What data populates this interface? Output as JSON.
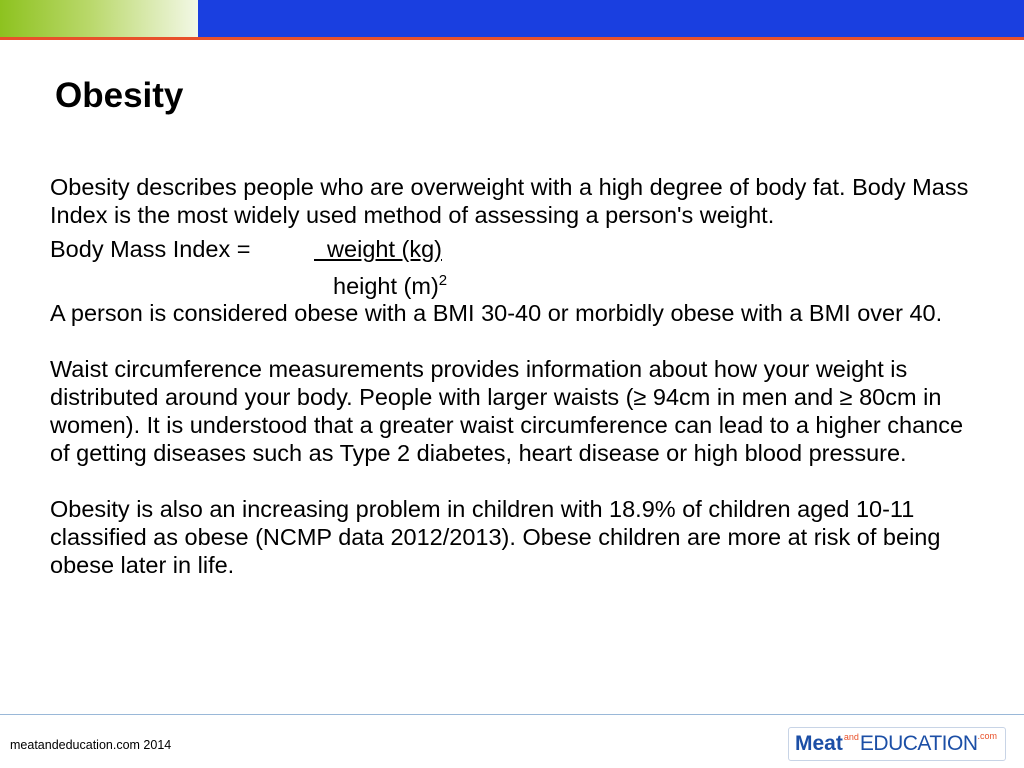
{
  "slide": {
    "title": "Obesity",
    "paragraph1": "Obesity describes people who are overweight with a high degree of body fat. Body Mass Index is the most widely used method of assessing a person's weight.",
    "bmi_label": "Body Mass Index =",
    "bmi_numerator": "  weight (kg)",
    "bmi_denominator": "height (m)",
    "bmi_exponent": "2",
    "paragraph3": "A person is considered obese with a BMI 30-40 or morbidly obese with a BMI over 40.",
    "paragraph4": "Waist circumference measurements provides information about how your weight is distributed around your body. People with larger waists (≥ 94cm in men and ≥ 80cm in women). It is understood that a greater waist circumference can lead to a higher chance of getting diseases such as Type 2 diabetes, heart disease or high blood pressure.",
    "paragraph5": "Obesity is also an increasing problem in children with 18.9% of children aged 10-11 classified as obese (NCMP data 2012/2013). Obese children are more at risk of being obese later in life."
  },
  "footer": {
    "copyright": "meatandeducation.com 2014",
    "logo_meat": "Meat",
    "logo_and": "and",
    "logo_education": "EDUCATION",
    "logo_com": ".com"
  },
  "colors": {
    "header_blue": "#1a3fe0",
    "header_green": "#8dc21f",
    "accent_red": "#e8512b",
    "logo_blue": "#1c4fa6"
  }
}
